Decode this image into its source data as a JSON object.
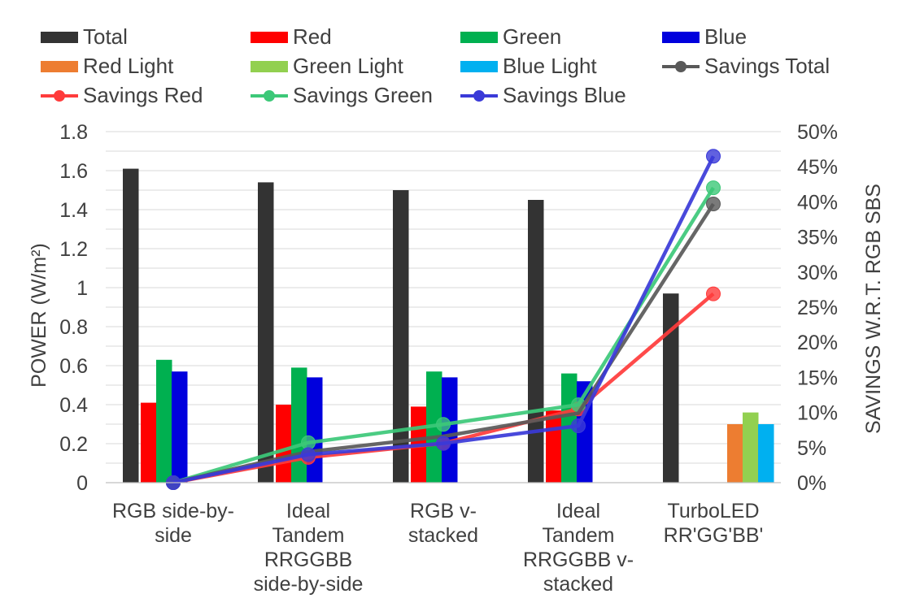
{
  "chart_data": {
    "type": "bar",
    "ylabel": "POWER (W/m²)",
    "y2label": "SAVINGS W.R.T. RGB SBS",
    "ylim": [
      0,
      1.8
    ],
    "y_ticks": [
      "0",
      "0.2",
      "0.4",
      "0.6",
      "0.8",
      "1",
      "1.2",
      "1.4",
      "1.6",
      "1.8"
    ],
    "y2lim": [
      0,
      0.5
    ],
    "y2_ticks": [
      "0%",
      "5%",
      "10%",
      "15%",
      "20%",
      "25%",
      "30%",
      "35%",
      "40%",
      "45%",
      "50%"
    ],
    "grid": true,
    "categories": [
      [
        "RGB side-by-",
        "side"
      ],
      [
        "Ideal",
        "Tandem",
        "RRGGBB",
        "side-by-side"
      ],
      [
        "RGB v-",
        "stacked"
      ],
      [
        "Ideal",
        "Tandem",
        "RRGGBB v-",
        "stacked"
      ],
      [
        "TurboLED",
        "RR'GG'BB'"
      ]
    ],
    "bar_series": [
      {
        "name": "Total",
        "color": "#333333",
        "values": [
          1.61,
          1.54,
          1.5,
          1.45,
          0.97
        ]
      },
      {
        "name": "Red",
        "color": "#ff0000",
        "values": [
          0.41,
          0.4,
          0.39,
          0.37,
          null
        ]
      },
      {
        "name": "Green",
        "color": "#00b050",
        "values": [
          0.63,
          0.59,
          0.57,
          0.56,
          null
        ]
      },
      {
        "name": "Blue",
        "color": "#0000dd",
        "values": [
          0.57,
          0.54,
          0.54,
          0.52,
          null
        ]
      },
      {
        "name": "Red Light",
        "color": "#ed7d31",
        "values": [
          null,
          null,
          null,
          null,
          0.3
        ]
      },
      {
        "name": "Green Light",
        "color": "#92d050",
        "values": [
          null,
          null,
          null,
          null,
          0.36
        ]
      },
      {
        "name": "Blue Light",
        "color": "#00b0f0",
        "values": [
          null,
          null,
          null,
          null,
          0.3
        ]
      }
    ],
    "line_series": [
      {
        "name": "Savings Red",
        "color": "#ff3b3b",
        "values": [
          0.0,
          0.036,
          0.056,
          0.105,
          0.269
        ],
        "markers": [
          true,
          true,
          true,
          true,
          true
        ]
      },
      {
        "name": "Savings Green",
        "color": "#3cc878",
        "values": [
          0.0,
          0.057,
          0.083,
          0.111,
          0.42
        ],
        "markers": [
          true,
          true,
          true,
          true,
          true
        ]
      },
      {
        "name": "Savings Total",
        "color": "#595959",
        "values": [
          0.0,
          0.044,
          0.066,
          0.099,
          0.397
        ],
        "markers": [
          true,
          false,
          false,
          false,
          true
        ]
      },
      {
        "name": "Savings Blue",
        "color": "#3a3ad8",
        "values": [
          0.0,
          0.04,
          0.056,
          0.081,
          0.465
        ],
        "markers": [
          true,
          true,
          true,
          true,
          true
        ]
      }
    ]
  },
  "legend": [
    {
      "label": "Total",
      "kind": "bar",
      "color": "#333333"
    },
    {
      "label": "Red",
      "kind": "bar",
      "color": "#ff0000"
    },
    {
      "label": "Green",
      "kind": "bar",
      "color": "#00b050"
    },
    {
      "label": "Blue",
      "kind": "bar",
      "color": "#0000dd"
    },
    {
      "label": "Red Light",
      "kind": "bar",
      "color": "#ed7d31"
    },
    {
      "label": "Green Light",
      "kind": "bar",
      "color": "#92d050"
    },
    {
      "label": "Blue Light",
      "kind": "bar",
      "color": "#00b0f0"
    },
    {
      "label": "Savings Total",
      "kind": "line",
      "color": "#595959"
    },
    {
      "label": "Savings Red",
      "kind": "line",
      "color": "#ff3b3b"
    },
    {
      "label": "Savings Green",
      "kind": "line",
      "color": "#3cc878"
    },
    {
      "label": "Savings Blue",
      "kind": "line",
      "color": "#3a3ad8"
    }
  ]
}
